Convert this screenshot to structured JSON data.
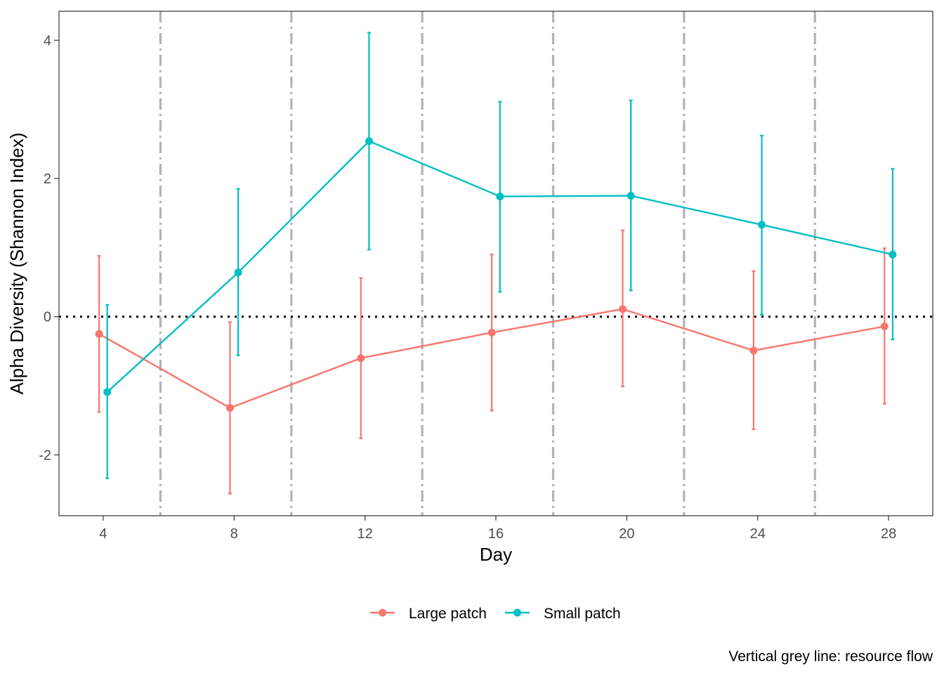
{
  "chart_data": {
    "type": "line",
    "xlabel": "Day",
    "ylabel": "Alpha Diversity (Shannon Index)",
    "x_ticks": [
      4,
      8,
      12,
      16,
      20,
      24,
      28
    ],
    "y_ticks": [
      -2,
      0,
      2,
      4
    ],
    "xlim": [
      2.65,
      29.35
    ],
    "ylim": [
      -2.88,
      4.42
    ],
    "grid": false,
    "reference_line": {
      "y": 0,
      "style": "dotted",
      "color": "#000000"
    },
    "resource_flow_lines": {
      "x": [
        5.75,
        9.75,
        13.75,
        17.75,
        21.75,
        25.75
      ],
      "style": "dashdot",
      "color": "#b3b3b3"
    },
    "series": [
      {
        "name": "Large patch",
        "color": "#F8766D",
        "x": [
          3.875,
          7.875,
          11.875,
          15.875,
          19.875,
          23.875,
          27.875
        ],
        "y": [
          -0.25,
          -1.32,
          -0.6,
          -0.23,
          0.11,
          -0.49,
          -0.14
        ],
        "lower": [
          -1.38,
          -2.56,
          -1.76,
          -1.36,
          -1.01,
          -1.63,
          -1.26
        ],
        "upper": [
          0.88,
          -0.08,
          0.56,
          0.9,
          1.25,
          0.66,
          0.99
        ]
      },
      {
        "name": "Small patch",
        "color": "#00BFC4",
        "x": [
          4.125,
          8.125,
          12.125,
          16.125,
          20.125,
          24.125,
          28.125
        ],
        "y": [
          -1.09,
          0.64,
          2.54,
          1.74,
          1.75,
          1.33,
          0.9
        ],
        "lower": [
          -2.34,
          -0.56,
          0.97,
          0.36,
          0.38,
          0.03,
          -0.33
        ],
        "upper": [
          0.17,
          1.85,
          4.11,
          3.11,
          3.13,
          2.62,
          2.14
        ]
      }
    ],
    "legend": {
      "position": "bottom"
    },
    "caption": "Vertical grey line: resource flow"
  }
}
